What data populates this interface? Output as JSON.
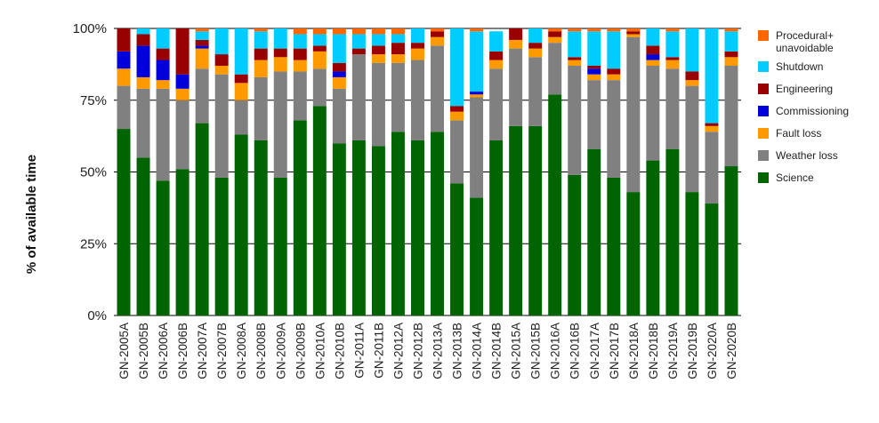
{
  "chart_data": {
    "type": "bar",
    "stacked": true,
    "title": "",
    "xlabel": "",
    "ylabel": "% of available time",
    "ylim": [
      0,
      100
    ],
    "yticks": [
      0,
      25,
      50,
      75,
      100
    ],
    "ytick_labels": [
      "0%",
      "25%",
      "50%",
      "75%",
      "100%"
    ],
    "grid": "horizontal",
    "legend_position": "right",
    "categories": [
      "GN-2005A",
      "GN-2005B",
      "GN-2006A",
      "GN-2006B",
      "GN-2007A",
      "GN-2007B",
      "GN-2008A",
      "GN-2008B",
      "GN-2009A",
      "GN-2009B",
      "GN-2010A",
      "GN-2010B",
      "GN-2011A",
      "GN-2011B",
      "GN-2012A",
      "GN-2012B",
      "GN-2013A",
      "GN-2013B",
      "GN-2014A",
      "GN-2014B",
      "GN-2015A",
      "GN-2015B",
      "GN-2016A",
      "GN-2016B",
      "GN-2017A",
      "GN-2017B",
      "GN-2018A",
      "GN-2018B",
      "GN-2019A",
      "GN-2019B",
      "GN-2020A",
      "GN-2020B"
    ],
    "series": [
      {
        "name": "Science",
        "color": "#006400",
        "values": [
          65,
          55,
          47,
          51,
          67,
          48,
          63,
          61,
          48,
          68,
          73,
          60,
          61,
          59,
          64,
          61,
          64,
          46,
          41,
          61,
          66,
          66,
          77,
          49,
          58,
          48,
          43,
          54,
          58,
          43,
          39,
          52
        ]
      },
      {
        "name": "Weather loss",
        "color": "#808080",
        "values": [
          15,
          24,
          32,
          24,
          19,
          36,
          12,
          22,
          37,
          17,
          13,
          19,
          30,
          29,
          24,
          28,
          30,
          22,
          35,
          25,
          27,
          24,
          18,
          38,
          24,
          34,
          54,
          33,
          28,
          37,
          25,
          35
        ]
      },
      {
        "name": "Fault loss",
        "color": "#FF9900",
        "values": [
          6,
          4,
          3,
          4,
          7,
          3,
          6,
          6,
          5,
          4,
          6,
          4,
          0,
          3,
          3,
          4,
          3,
          3,
          1,
          3,
          3,
          3,
          2,
          2,
          2,
          2,
          1,
          2,
          3,
          2,
          2,
          3
        ]
      },
      {
        "name": "Commissioning",
        "color": "#0000DD",
        "values": [
          6,
          11,
          7,
          5,
          1,
          0,
          0,
          0,
          0,
          0,
          0,
          2,
          0,
          0,
          0,
          0,
          0,
          0,
          1,
          0,
          0,
          0,
          0,
          0,
          2,
          0,
          0,
          2,
          0,
          0,
          0,
          0
        ]
      },
      {
        "name": "Engineering",
        "color": "#990000",
        "values": [
          8,
          4,
          4,
          16,
          2,
          4,
          3,
          4,
          3,
          4,
          2,
          3,
          2,
          3,
          4,
          2,
          2,
          2,
          0,
          3,
          4,
          2,
          2,
          1,
          1,
          2,
          1,
          3,
          1,
          3,
          1,
          2
        ]
      },
      {
        "name": "Shutdown",
        "color": "#00CCFF",
        "values": [
          0,
          2,
          7,
          0,
          3,
          9,
          16,
          6,
          7,
          5,
          4,
          10,
          5,
          4,
          3,
          5,
          0,
          27,
          21,
          7,
          0,
          5,
          0,
          9,
          12,
          13,
          0,
          6,
          9,
          15,
          33,
          7
        ]
      },
      {
        "name": "Procedural+\nunavoidable",
        "color": "#FF6600",
        "values": [
          0,
          0,
          0,
          0,
          1,
          0,
          0,
          1,
          0,
          2,
          2,
          2,
          2,
          2,
          2,
          0,
          1,
          0,
          1,
          0,
          0,
          0,
          1,
          1,
          1,
          1,
          1,
          0,
          1,
          0,
          0,
          1
        ]
      }
    ],
    "legend_order": [
      "Procedural+\nunavoidable",
      "Shutdown",
      "Engineering",
      "Commissioning",
      "Fault loss",
      "Weather loss",
      "Science"
    ]
  }
}
